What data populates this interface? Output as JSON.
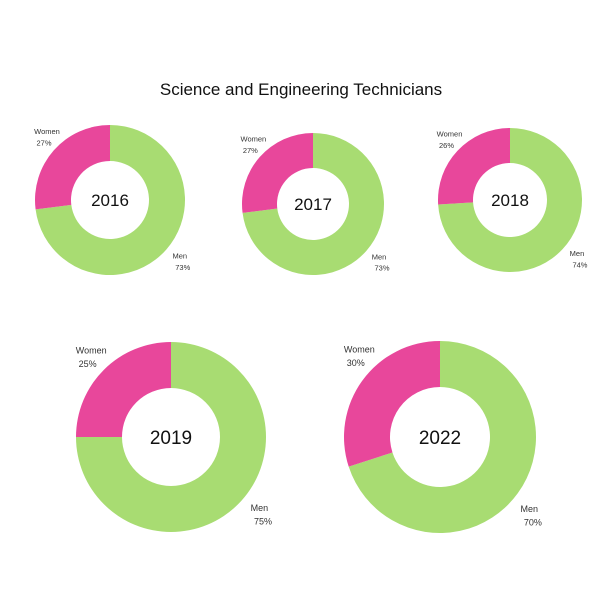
{
  "chart_data": {
    "type": "pie",
    "title": "Science and Engineering Technicians",
    "colors": {
      "Women": "#E8479B",
      "Men": "#A8DC72"
    },
    "charts": [
      {
        "label": "2016",
        "slices": [
          {
            "name": "Women",
            "value": 27,
            "text": "27%"
          },
          {
            "name": "Men",
            "value": 73,
            "text": "73%"
          }
        ]
      },
      {
        "label": "2017",
        "slices": [
          {
            "name": "Women",
            "value": 27,
            "text": "27%"
          },
          {
            "name": "Men",
            "value": 73,
            "text": "73%"
          }
        ]
      },
      {
        "label": "2018",
        "slices": [
          {
            "name": "Women",
            "value": 26,
            "text": "26%"
          },
          {
            "name": "Men",
            "value": 74,
            "text": "74%"
          }
        ]
      },
      {
        "label": "2019",
        "slices": [
          {
            "name": "Women",
            "value": 25,
            "text": "25%"
          },
          {
            "name": "Men",
            "value": 75,
            "text": "75%"
          }
        ]
      },
      {
        "label": "2022",
        "slices": [
          {
            "name": "Women",
            "value": 30,
            "text": "30%"
          },
          {
            "name": "Men",
            "value": 70,
            "text": "70%"
          }
        ]
      }
    ]
  }
}
